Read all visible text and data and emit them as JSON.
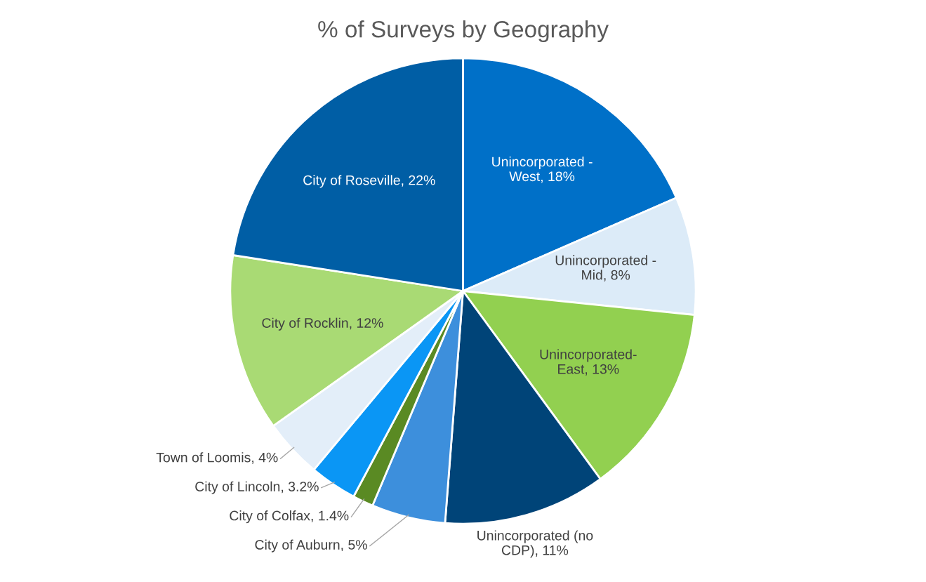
{
  "chart_data": {
    "type": "pie",
    "title": "% of Surveys by Geography",
    "categories": [
      "Unincorporated - West",
      "Unincorporated - Mid",
      "Unincorporated- East",
      "Unincorporated (no CDP)",
      "City of Auburn",
      "City of Colfax",
      "City of Lincoln",
      "Town of Loomis",
      "City of Rocklin",
      "City of Roseville"
    ],
    "values": [
      18,
      8,
      13,
      11,
      5,
      1.4,
      3.2,
      4,
      12,
      22
    ],
    "value_labels": [
      "18%",
      "8%",
      "13%",
      "11%",
      "5%",
      "1.4%",
      "3.2%",
      "4%",
      "12%",
      "22%"
    ],
    "colors": [
      "#0070c8",
      "#dcebf8",
      "#92d050",
      "#004478",
      "#3d8fdc",
      "#5a8a23",
      "#0a96f5",
      "#e3eef9",
      "#a9da74",
      "#005ea5"
    ]
  }
}
